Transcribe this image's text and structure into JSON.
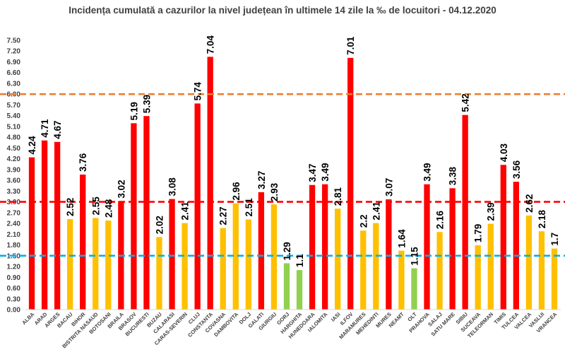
{
  "chart_data": {
    "type": "bar",
    "title": "Incidența cumulată a cazurilor la nivel județean în ultimele 14 zile la ‰ de locuitori - 04.12.2020",
    "categories": [
      "ALBA",
      "ARAD",
      "ARGES",
      "BACAU",
      "BIHOR",
      "BISTRITA NASAUD",
      "BOTOSANI",
      "BRAILA",
      "BRASOV",
      "BUCURESTI",
      "BUZAU",
      "CALARASI",
      "CARAS-SEVERIN",
      "CLUJ",
      "CONSTANTA",
      "COVASNA",
      "DAMBOVITA",
      "DOLJ",
      "GALATI",
      "GIURGIU",
      "GORJ",
      "HARGHITA",
      "HUNEDOARA",
      "IALOMITA",
      "IASI",
      "ILFOV",
      "MARAMURES",
      "MEHEDINTI",
      "MURES",
      "NEAMT",
      "OLT",
      "PRAHOVA",
      "SALAJ",
      "SATU MARE",
      "SIBIU",
      "SUCEAVA",
      "TELEORMAN",
      "TIMIS",
      "TULCEA",
      "VALCEA",
      "VASLUI",
      "VRANCEA"
    ],
    "values": [
      4.24,
      4.71,
      4.67,
      2.52,
      3.76,
      2.55,
      2.48,
      3.02,
      5.19,
      5.39,
      2.02,
      3.08,
      2.41,
      5.74,
      7.04,
      2.27,
      2.96,
      2.51,
      3.27,
      2.93,
      1.29,
      1.1,
      3.47,
      3.49,
      2.81,
      7.01,
      2.2,
      2.41,
      3.07,
      1.64,
      1.15,
      3.49,
      2.16,
      3.38,
      5.42,
      1.79,
      2.39,
      4.03,
      3.56,
      2.62,
      2.18,
      1.7
    ],
    "value_labels": [
      "4.24",
      "4.71",
      "4.67",
      "2.52",
      "3.76",
      "2.55",
      "2.48",
      "3.02",
      "5.19",
      "5.39",
      "2.02",
      "3.08",
      "2.41",
      "5.74",
      "7.04",
      "2.27",
      "2.96",
      "2.51",
      "3.27",
      "2.93",
      "1.29",
      "1.1",
      "3.47",
      "3.49",
      "2.81",
      "7.01",
      "2.2",
      "2.41",
      "3.07",
      "1.64",
      "1.15",
      "3.49",
      "2.16",
      "3.38",
      "5.42",
      "1.79",
      "2.39",
      "4.03",
      "3.56",
      "2.62",
      "2.18",
      "1.7"
    ],
    "ylim": [
      0,
      7.5
    ],
    "ytick_step": 0.3,
    "reference_lines": [
      {
        "value": 6.0,
        "color": "#ED7D31",
        "style": "dashed"
      },
      {
        "value": 3.0,
        "color": "#FF0000",
        "style": "dashed"
      },
      {
        "value": 1.5,
        "color": "#00B0F0",
        "style": "dashed"
      }
    ],
    "color_thresholds": {
      "high": 3.0,
      "low": 1.5
    },
    "colors": {
      "high": "#FF0000",
      "mid": "#FFC000",
      "low": "#92D050"
    },
    "grid": false,
    "legend": "none"
  }
}
